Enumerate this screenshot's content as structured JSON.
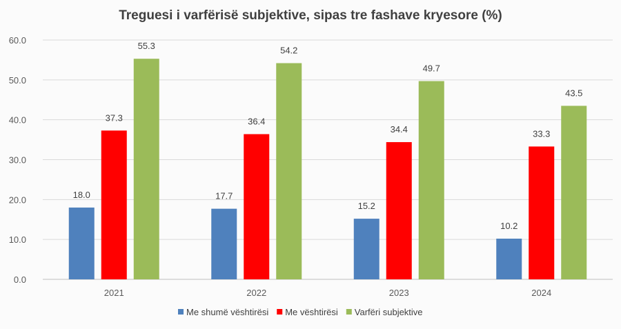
{
  "chart_data": {
    "type": "bar",
    "title": "Treguesi i varfërisë subjektive, sipas tre fashave kryesore (%)",
    "categories": [
      "2021",
      "2022",
      "2023",
      "2024"
    ],
    "series": [
      {
        "name": "Me shumë vështirësi",
        "color": "#4f81bd",
        "values": [
          18.0,
          17.7,
          15.2,
          10.2
        ]
      },
      {
        "name": "Me vështirësi",
        "color": "#ff0000",
        "values": [
          37.3,
          36.4,
          34.4,
          33.3
        ]
      },
      {
        "name": "Varfëri subjektive",
        "color": "#9bbb59",
        "values": [
          55.3,
          54.2,
          49.7,
          43.5
        ]
      }
    ],
    "ylim": [
      0,
      60
    ],
    "yticks": [
      "0.0",
      "10.0",
      "20.0",
      "30.0",
      "40.0",
      "50.0",
      "60.0"
    ],
    "grid": true,
    "legend_position": "bottom",
    "xlabel": "",
    "ylabel": ""
  }
}
